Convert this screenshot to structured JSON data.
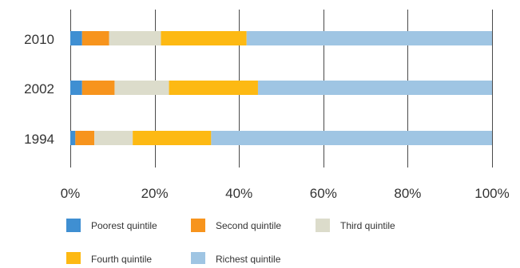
{
  "chart_data": {
    "type": "bar",
    "orientation": "horizontal",
    "stacked": true,
    "percent": true,
    "categories": [
      "2010",
      "2002",
      "1994"
    ],
    "series": [
      {
        "name": "Poorest quintile",
        "color": "#3f8fd2",
        "values": [
          2.8,
          2.8,
          1.2
        ]
      },
      {
        "name": "Second quintile",
        "color": "#f7941d",
        "values": [
          6.4,
          7.7,
          4.5
        ]
      },
      {
        "name": "Third quintile",
        "color": "#dcdccb",
        "values": [
          12.3,
          12.9,
          9.1
        ]
      },
      {
        "name": "Fourth quintile",
        "color": "#fdb913",
        "values": [
          20.3,
          21.1,
          18.6
        ]
      },
      {
        "name": "Richest quintile",
        "color": "#9fc5e3",
        "values": [
          58.2,
          55.5,
          66.6
        ]
      }
    ],
    "xticks": [
      "0%",
      "20%",
      "40%",
      "60%",
      "80%",
      "100%"
    ],
    "xlim": [
      0,
      100
    ],
    "grid": "vertical",
    "legend": "bottom",
    "title": "",
    "xlabel": "",
    "ylabel": ""
  }
}
